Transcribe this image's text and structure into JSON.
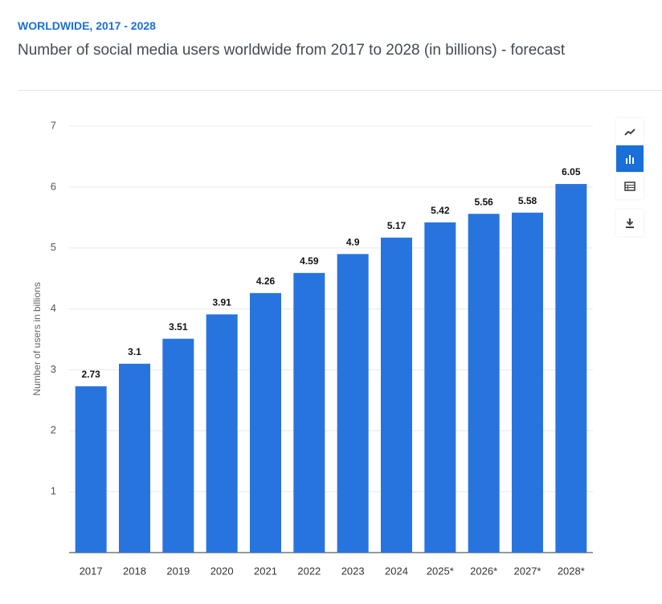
{
  "chart_data": {
    "type": "bar",
    "subtitle": "WORLDWIDE, 2017 - 2028",
    "title": "Number of social media users worldwide from 2017 to 2028 (in billions) - forecast",
    "y_label": "Number of users in billions",
    "categories": [
      "2017",
      "2018",
      "2019",
      "2020",
      "2021",
      "2022",
      "2023",
      "2024",
      "2025*",
      "2026*",
      "2027*",
      "2028*"
    ],
    "values": [
      2.73,
      3.1,
      3.51,
      3.91,
      4.26,
      4.59,
      4.9,
      5.17,
      5.42,
      5.56,
      5.58,
      6.05
    ],
    "color": "#2874de",
    "ylim": [
      0,
      7
    ],
    "yticks": [
      1,
      2,
      3,
      4,
      5,
      6,
      7
    ],
    "grid": true
  }
}
